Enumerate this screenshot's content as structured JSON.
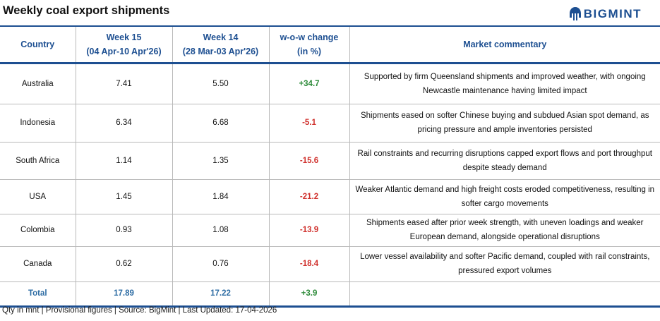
{
  "title": "Weekly coal export shipments",
  "logo": "BIGMINT",
  "headers": {
    "country": "Country",
    "week15": "Week 15",
    "week15_range": "(04 Apr-10 Apr'26)",
    "week14": "Week 14",
    "week14_range": "(28 Mar-03 Apr'26)",
    "change": "w-o-w change",
    "change_unit": "(in %)",
    "commentary": "Market commentary"
  },
  "rows": [
    {
      "country": "Australia",
      "w15": "7.41",
      "w14": "5.50",
      "change": "+34.7",
      "commentary": "Supported by firm Queensland shipments and improved weather, with ongoing Newcastle maintenance having limited impact"
    },
    {
      "country": "Indonesia",
      "w15": "6.34",
      "w14": "6.68",
      "change": "-5.1",
      "commentary": "Shipments eased on softer Chinese buying and subdued Asian spot demand, as pricing pressure and ample inventories persisted"
    },
    {
      "country": "South Africa",
      "w15": "1.14",
      "w14": "1.35",
      "change": "-15.6",
      "commentary": "Rail constraints and recurring disruptions capped export flows and port throughput despite steady demand"
    },
    {
      "country": "USA",
      "w15": "1.45",
      "w14": "1.84",
      "change": "-21.2",
      "commentary": "Weaker Atlantic demand and high freight costs eroded competitiveness, resulting in softer cargo movements"
    },
    {
      "country": "Colombia",
      "w15": "0.93",
      "w14": "1.08",
      "change": "-13.9",
      "commentary": "Shipments eased after prior week strength, with uneven loadings and weaker European demand, alongside operational disruptions"
    },
    {
      "country": "Canada",
      "w15": "0.62",
      "w14": "0.76",
      "change": "-18.4",
      "commentary": "Lower vessel availability and softer Pacific demand, coupled with rail constraints, pressured export volumes"
    }
  ],
  "total": {
    "label": "Total",
    "w15": "17.89",
    "w14": "17.22",
    "change": "+3.9"
  },
  "footer": "Qty in mnt | Provisional figures | Source: BigMint | Last Updated: 17-04-2026"
}
